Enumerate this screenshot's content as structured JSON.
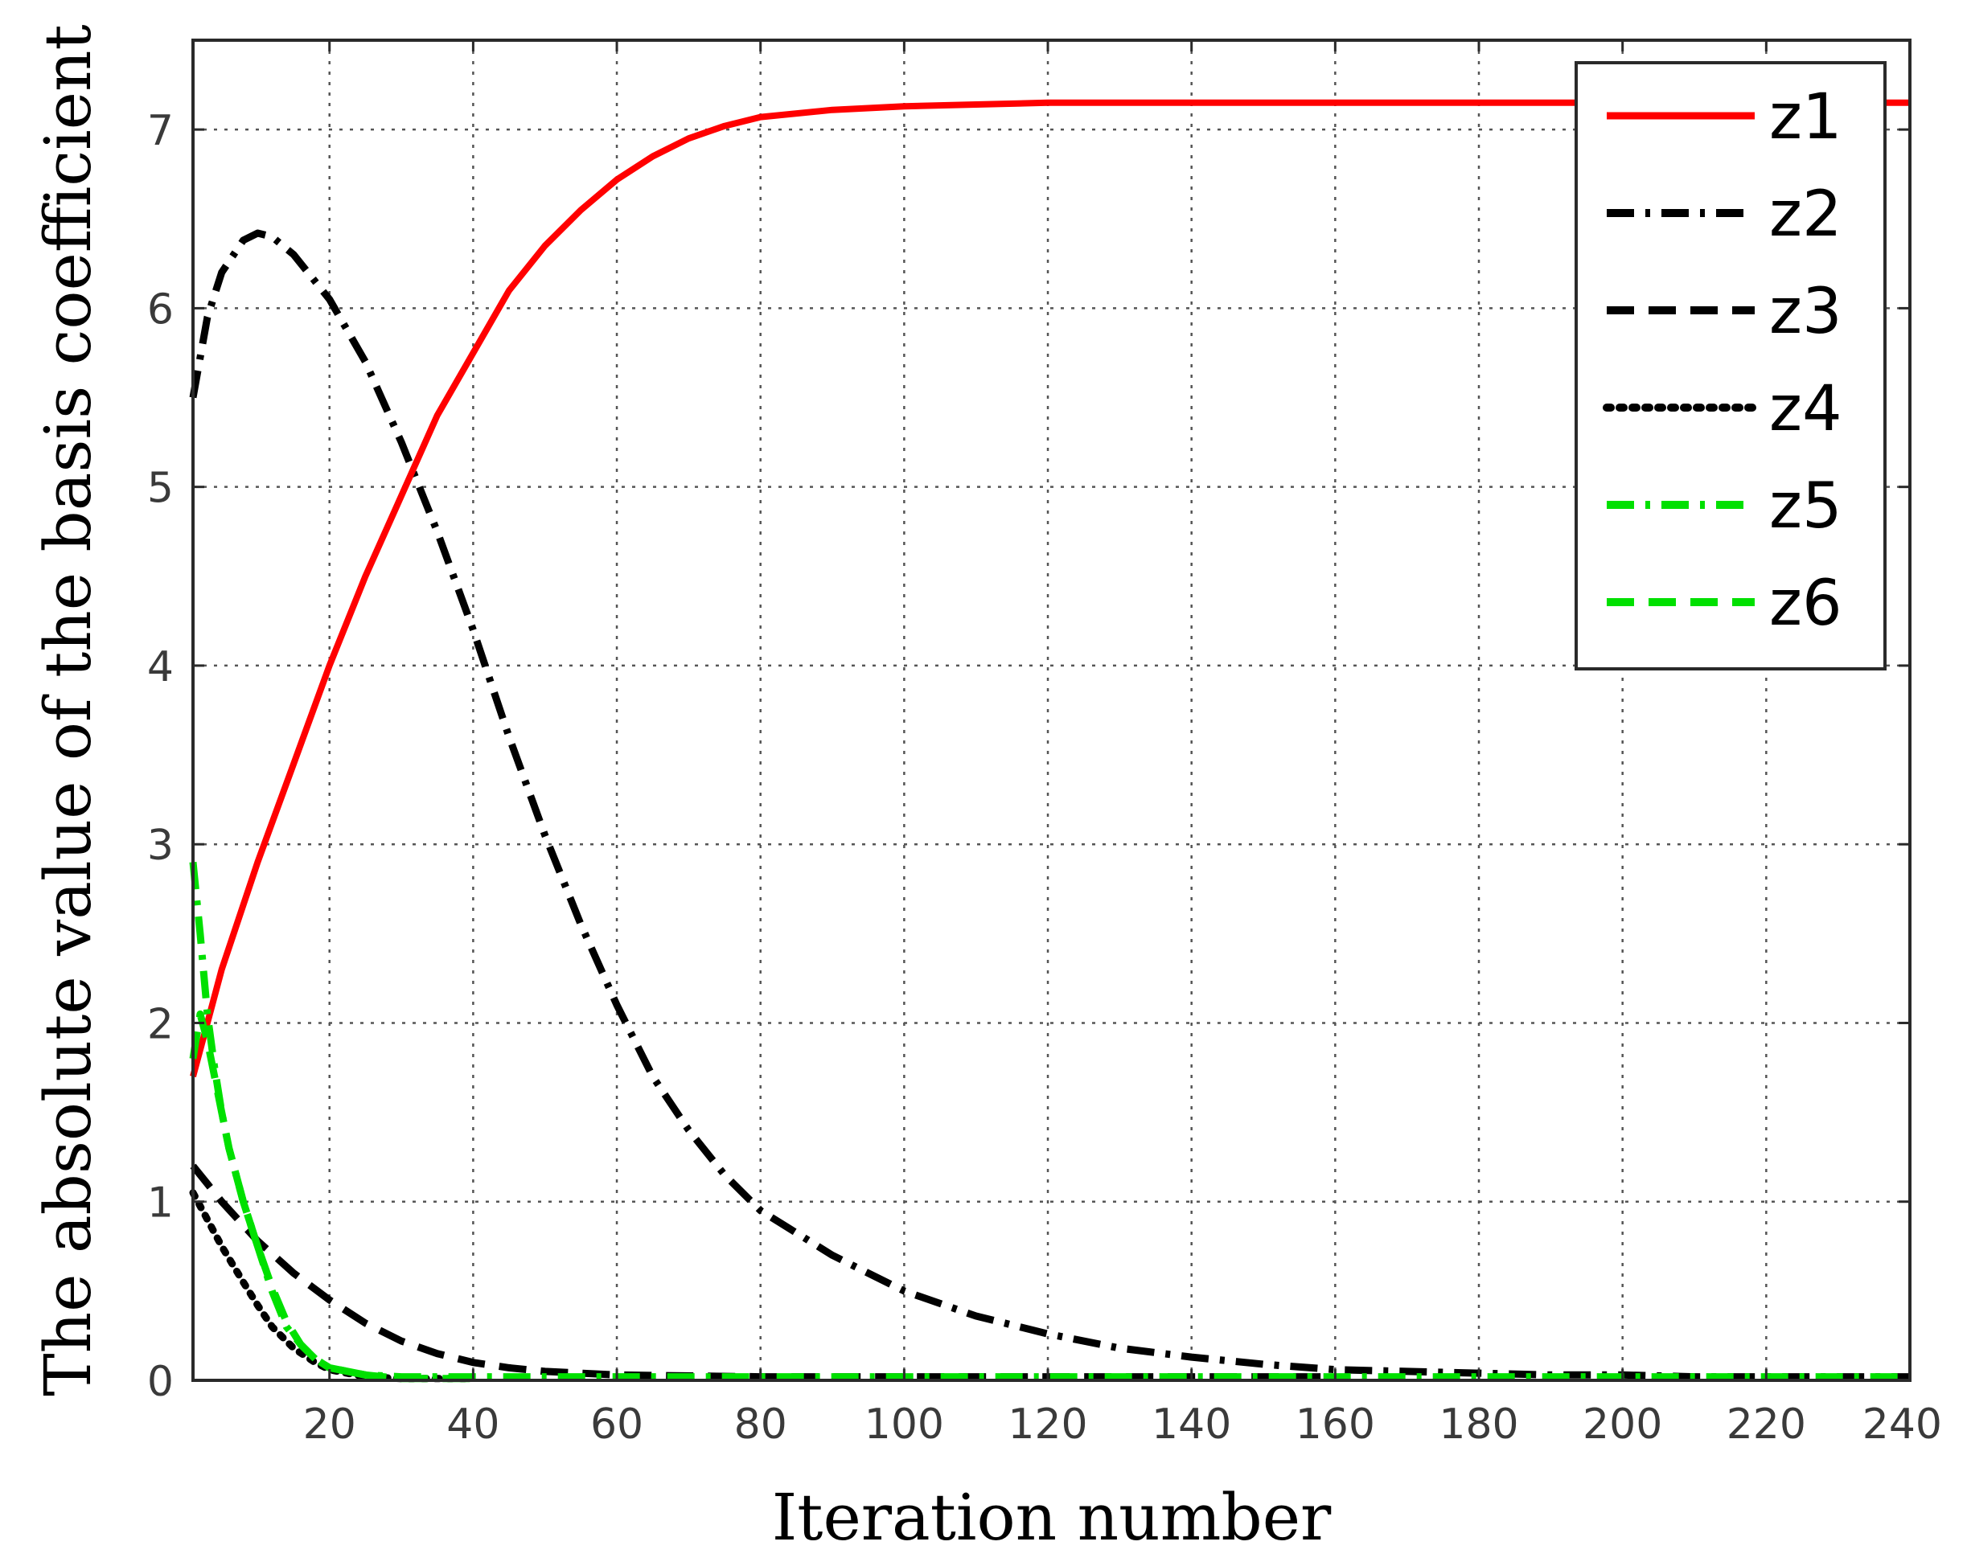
{
  "chart_data": {
    "type": "line",
    "xlabel": "Iteration number",
    "ylabel": "The absolute value of the basis coefficient",
    "xlim": [
      1,
      240
    ],
    "ylim": [
      0,
      7.5
    ],
    "xticks": [
      20,
      40,
      60,
      80,
      100,
      120,
      140,
      160,
      180,
      200,
      220,
      240
    ],
    "yticks": [
      0,
      1,
      2,
      3,
      4,
      5,
      6,
      7
    ],
    "grid": true,
    "legend_position": "top-right",
    "series": [
      {
        "name": "z1",
        "color": "#ff0000",
        "style": "solid",
        "points": [
          [
            1,
            1.7
          ],
          [
            3,
            2.0
          ],
          [
            5,
            2.3
          ],
          [
            10,
            2.9
          ],
          [
            15,
            3.45
          ],
          [
            20,
            4.0
          ],
          [
            25,
            4.5
          ],
          [
            30,
            4.95
          ],
          [
            35,
            5.4
          ],
          [
            40,
            5.75
          ],
          [
            45,
            6.1
          ],
          [
            50,
            6.35
          ],
          [
            55,
            6.55
          ],
          [
            60,
            6.72
          ],
          [
            65,
            6.85
          ],
          [
            70,
            6.95
          ],
          [
            75,
            7.02
          ],
          [
            80,
            7.07
          ],
          [
            90,
            7.11
          ],
          [
            100,
            7.13
          ],
          [
            110,
            7.14
          ],
          [
            120,
            7.15
          ],
          [
            150,
            7.15
          ],
          [
            180,
            7.15
          ],
          [
            210,
            7.15
          ],
          [
            240,
            7.15
          ]
        ]
      },
      {
        "name": "z2",
        "color": "#000000",
        "style": "dash-dot",
        "points": [
          [
            1,
            5.5
          ],
          [
            3,
            5.95
          ],
          [
            5,
            6.2
          ],
          [
            8,
            6.38
          ],
          [
            10,
            6.42
          ],
          [
            12,
            6.4
          ],
          [
            15,
            6.3
          ],
          [
            20,
            6.05
          ],
          [
            25,
            5.7
          ],
          [
            30,
            5.25
          ],
          [
            35,
            4.75
          ],
          [
            40,
            4.2
          ],
          [
            45,
            3.6
          ],
          [
            50,
            3.05
          ],
          [
            55,
            2.55
          ],
          [
            60,
            2.1
          ],
          [
            65,
            1.7
          ],
          [
            70,
            1.4
          ],
          [
            75,
            1.15
          ],
          [
            80,
            0.95
          ],
          [
            90,
            0.7
          ],
          [
            100,
            0.5
          ],
          [
            110,
            0.36
          ],
          [
            120,
            0.26
          ],
          [
            130,
            0.18
          ],
          [
            140,
            0.13
          ],
          [
            150,
            0.09
          ],
          [
            160,
            0.06
          ],
          [
            170,
            0.05
          ],
          [
            180,
            0.04
          ],
          [
            190,
            0.03
          ],
          [
            200,
            0.03
          ],
          [
            210,
            0.02
          ],
          [
            240,
            0.02
          ]
        ]
      },
      {
        "name": "z3",
        "color": "#000000",
        "style": "dashed",
        "points": [
          [
            1,
            1.2
          ],
          [
            3,
            1.1
          ],
          [
            5,
            1.0
          ],
          [
            10,
            0.78
          ],
          [
            15,
            0.6
          ],
          [
            20,
            0.45
          ],
          [
            25,
            0.32
          ],
          [
            30,
            0.22
          ],
          [
            35,
            0.15
          ],
          [
            40,
            0.1
          ],
          [
            45,
            0.07
          ],
          [
            50,
            0.05
          ],
          [
            60,
            0.03
          ],
          [
            80,
            0.02
          ],
          [
            100,
            0.02
          ],
          [
            160,
            0.02
          ]
        ]
      },
      {
        "name": "z4",
        "color": "#000000",
        "style": "dotted",
        "points": [
          [
            1,
            1.05
          ],
          [
            3,
            0.9
          ],
          [
            5,
            0.75
          ],
          [
            8,
            0.55
          ],
          [
            10,
            0.42
          ],
          [
            12,
            0.3
          ],
          [
            15,
            0.18
          ],
          [
            18,
            0.1
          ],
          [
            20,
            0.06
          ],
          [
            25,
            0.02
          ],
          [
            30,
            0.01
          ],
          [
            40,
            0.01
          ]
        ]
      },
      {
        "name": "z5",
        "color": "#00e000",
        "style": "dash-dot",
        "points": [
          [
            1,
            2.9
          ],
          [
            2,
            2.5
          ],
          [
            3,
            2.05
          ],
          [
            4,
            1.75
          ],
          [
            5,
            1.5
          ],
          [
            6,
            1.3
          ],
          [
            8,
            1.0
          ],
          [
            10,
            0.75
          ],
          [
            12,
            0.5
          ],
          [
            14,
            0.3
          ],
          [
            16,
            0.2
          ],
          [
            18,
            0.12
          ],
          [
            20,
            0.07
          ],
          [
            25,
            0.03
          ],
          [
            30,
            0.02
          ],
          [
            60,
            0.02
          ],
          [
            120,
            0.02
          ],
          [
            180,
            0.02
          ],
          [
            240,
            0.02
          ]
        ]
      },
      {
        "name": "z6",
        "color": "#00e000",
        "style": "dashed",
        "points": [
          [
            1,
            1.8
          ],
          [
            2,
            2.05
          ],
          [
            3,
            1.9
          ],
          [
            4,
            1.7
          ],
          [
            5,
            1.5
          ],
          [
            6,
            1.3
          ],
          [
            8,
            1.0
          ],
          [
            10,
            0.75
          ],
          [
            12,
            0.52
          ],
          [
            14,
            0.33
          ],
          [
            16,
            0.2
          ],
          [
            18,
            0.12
          ],
          [
            20,
            0.07
          ],
          [
            25,
            0.03
          ],
          [
            30,
            0.01
          ],
          [
            40,
            0.01
          ]
        ]
      }
    ]
  }
}
